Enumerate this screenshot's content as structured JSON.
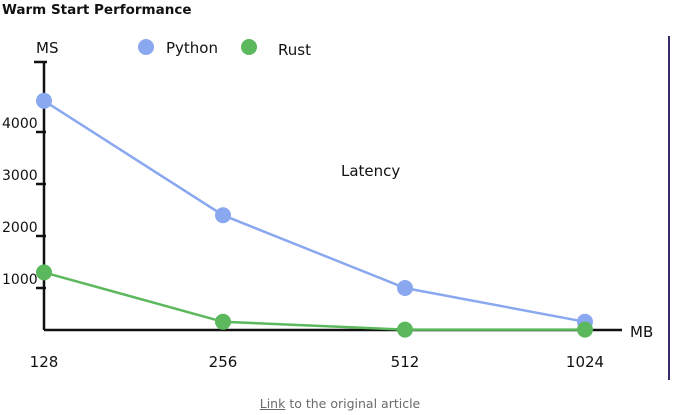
{
  "page": {
    "title": "Warm Start Performance",
    "caption_link": "Link",
    "caption_rest": " to the original article"
  },
  "colors": {
    "python": "#8aa8f0",
    "rust": "#5cb85c",
    "axis": "#111111",
    "frame": "#3a2a6a"
  },
  "chart_data": {
    "type": "line",
    "title": "Latency",
    "xlabel": "MB",
    "ylabel": "MS",
    "categories": [
      "128",
      "256",
      "512",
      "1024"
    ],
    "yticks": [
      1000,
      2000,
      3000,
      4000
    ],
    "ylim": [
      0,
      5000
    ],
    "grid": false,
    "legend_position": "top-left",
    "series": [
      {
        "name": "Python",
        "color": "#8aa8f0",
        "values": [
          4600,
          2400,
          1000,
          350
        ]
      },
      {
        "name": "Rust",
        "color": "#5cb85c",
        "values": [
          1300,
          350,
          200,
          200
        ]
      }
    ]
  }
}
